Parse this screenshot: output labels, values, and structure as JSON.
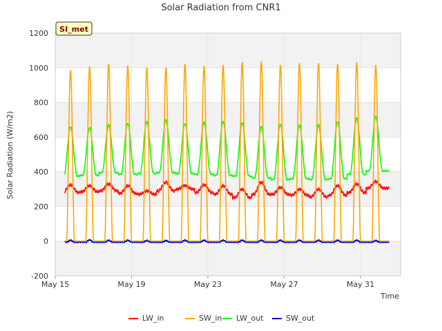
{
  "chart_data": {
    "type": "line",
    "title": "Solar Radiation from CNR1",
    "xlabel": "Time",
    "ylabel": "Solar Radiation (W/m2)",
    "badge": "SI_met",
    "xlim": [
      15.0,
      33.1
    ],
    "ylim": [
      -200,
      1200
    ],
    "y_ticks": [
      -200,
      0,
      200,
      400,
      600,
      800,
      1000,
      1200
    ],
    "x_ticks": [
      {
        "value": 15,
        "label": "May 15"
      },
      {
        "value": 19,
        "label": "May 19"
      },
      {
        "value": 23,
        "label": "May 23"
      },
      {
        "value": 27,
        "label": "May 27"
      },
      {
        "value": 31,
        "label": "May 31"
      }
    ],
    "x_range_data": [
      15.5,
      32.5
    ],
    "grid": true,
    "legend_position": "bottom",
    "daily_peaks": {
      "days": [
        15.8,
        16.8,
        17.8,
        18.8,
        19.8,
        20.8,
        21.8,
        22.8,
        23.8,
        24.8,
        25.8,
        26.8,
        27.8,
        28.8,
        29.8,
        30.8,
        31.8
      ],
      "SW_in": [
        985,
        1005,
        1020,
        1010,
        1000,
        1000,
        1020,
        1010,
        1015,
        1030,
        1035,
        1015,
        1025,
        1025,
        1020,
        1030,
        1015
      ],
      "LW_out": [
        660,
        655,
        670,
        680,
        690,
        700,
        680,
        685,
        690,
        685,
        660,
        675,
        670,
        670,
        690,
        710,
        720
      ],
      "LW_out_night": [
        375,
        380,
        395,
        385,
        390,
        395,
        390,
        385,
        380,
        375,
        365,
        355,
        360,
        355,
        360,
        385,
        405
      ],
      "LW_in": [
        325,
        320,
        330,
        320,
        290,
        340,
        320,
        325,
        320,
        300,
        340,
        310,
        300,
        300,
        320,
        330,
        345
      ],
      "LW_in_night": [
        280,
        285,
        290,
        275,
        270,
        290,
        300,
        280,
        270,
        250,
        270,
        270,
        265,
        255,
        265,
        280,
        305
      ],
      "SW_out": [
        10,
        12,
        10,
        10,
        8,
        8,
        10,
        10,
        10,
        10,
        10,
        10,
        10,
        10,
        10,
        10,
        8
      ]
    },
    "series": [
      {
        "name": "LW_in",
        "color": "#ff0000"
      },
      {
        "name": "SW_in",
        "color": "#ffa500"
      },
      {
        "name": "LW_out",
        "color": "#00ff00"
      },
      {
        "name": "SW_out",
        "color": "#0000cd"
      }
    ]
  }
}
